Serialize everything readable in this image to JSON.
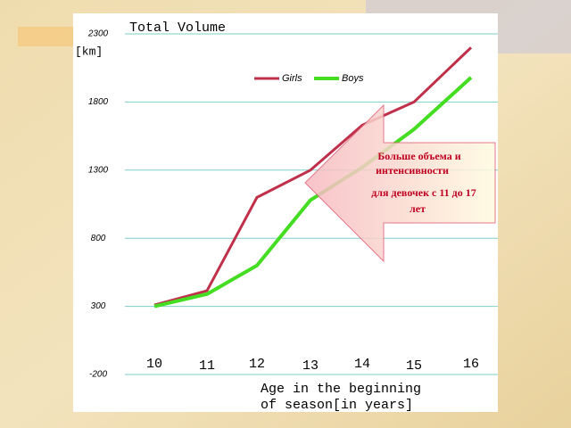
{
  "chart_data": {
    "type": "line",
    "title": "Total Volume",
    "ylabel": "[km]",
    "xlabel": [
      "Age in the beginning",
      "of season[in years]"
    ],
    "categories": [
      "10",
      "11",
      "12",
      "13",
      "14",
      "15",
      "16"
    ],
    "series": [
      {
        "name": "Girls",
        "color": "#c0304a",
        "values": [
          310,
          415,
          1100,
          1300,
          1630,
          1800,
          2200
        ]
      },
      {
        "name": "Boys",
        "color": "#44dd22",
        "values": [
          300,
          390,
          600,
          1080,
          1320,
          1600,
          1980
        ]
      }
    ],
    "ylim": [
      -200,
      2300
    ],
    "yticks": [
      -200,
      300,
      800,
      1300,
      1800,
      2300
    ],
    "grid": true,
    "annotation": [
      "Больше объема и",
      "интенсивности",
      "для девочек с 11 до 17",
      "лет"
    ]
  }
}
